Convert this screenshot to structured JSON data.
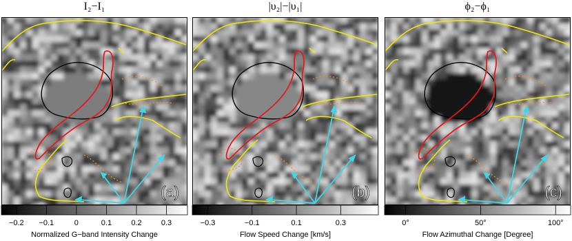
{
  "chart_data": [
    {
      "type": "image",
      "title": "I₂−I₁",
      "panel_label": "(a)",
      "colorbar_label": "Normalized G−band Intensity Change",
      "clim": [
        -0.25,
        0.37
      ],
      "cticks": [
        {
          "value": -0.2,
          "label": "−0.2"
        },
        {
          "value": -0.1,
          "label": "−0.1"
        },
        0,
        0.1,
        0.2,
        0.3
      ]
    },
    {
      "type": "image",
      "title": "|υ₂|−|υ₁|",
      "panel_label": "(b)",
      "colorbar_label": "Flow Speed Change  [km/s]",
      "clim": [
        -0.37,
        0.47
      ],
      "cticks": [
        {
          "value": -0.3,
          "label": "−0.3"
        },
        {
          "value": -0.1,
          "label": "−0.1"
        },
        0.1,
        0.3
      ]
    },
    {
      "type": "image",
      "title": "ϕ₂−ϕ₁",
      "panel_label": "(c)",
      "colorbar_label": "Flow Azimuthal Change  [Degree]",
      "clim": [
        -14,
        110
      ],
      "cticks": [
        {
          "value": 0,
          "label": "0°"
        },
        {
          "value": 50,
          "label": "50°"
        },
        {
          "value": 100,
          "label": "100°"
        }
      ]
    }
  ]
}
